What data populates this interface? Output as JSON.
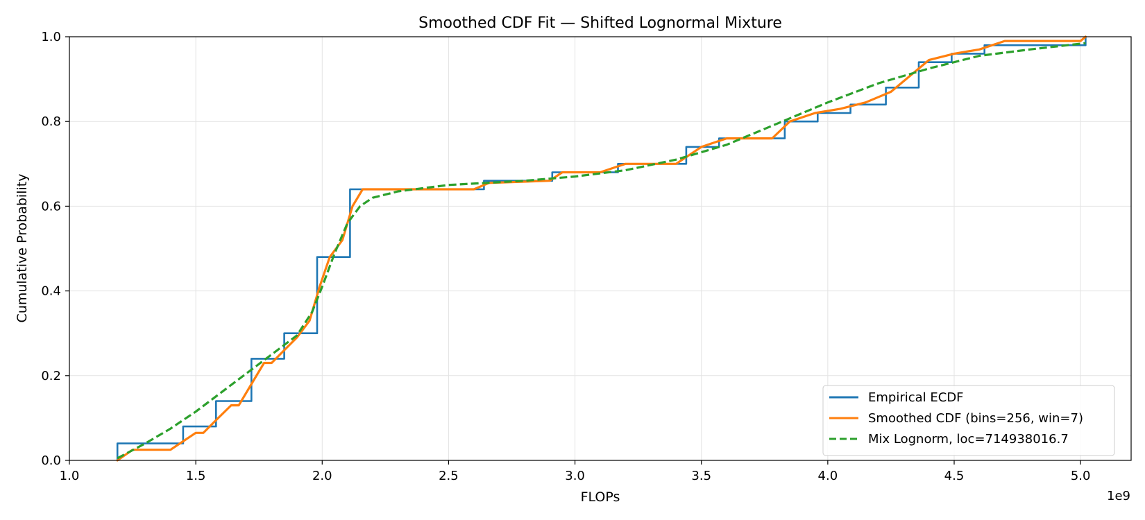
{
  "chart_data": {
    "type": "line",
    "title": "Smoothed CDF Fit — Shifted Lognormal Mixture",
    "xlabel": "FLOPs",
    "ylabel": "Cumulative Probability",
    "x_offset_label": "1e9",
    "xlim": [
      1.0,
      5.2
    ],
    "ylim": [
      0.0,
      1.0
    ],
    "x_ticks": [
      1.0,
      1.5,
      2.0,
      2.5,
      3.0,
      3.5,
      4.0,
      4.5,
      5.0
    ],
    "x_tick_labels": [
      "1.0",
      "1.5",
      "2.0",
      "2.5",
      "3.0",
      "3.5",
      "4.0",
      "4.5",
      "5.0"
    ],
    "y_ticks": [
      0.0,
      0.2,
      0.4,
      0.6,
      0.8,
      1.0
    ],
    "y_tick_labels": [
      "0.0",
      "0.2",
      "0.4",
      "0.6",
      "0.8",
      "1.0"
    ],
    "grid": true,
    "legend_position": "lower-right",
    "series": [
      {
        "name": "Empirical ECDF",
        "style": "step",
        "color": "#1f77b4",
        "dash": "solid",
        "x": [
          1.19,
          1.19,
          1.45,
          1.45,
          1.58,
          1.58,
          1.72,
          1.72,
          1.85,
          1.85,
          1.98,
          1.98,
          2.11,
          2.11,
          2.64,
          2.64,
          2.91,
          2.91,
          3.17,
          3.17,
          3.44,
          3.44,
          3.57,
          3.57,
          3.83,
          3.83,
          3.96,
          3.96,
          4.09,
          4.09,
          4.23,
          4.23,
          4.36,
          4.36,
          4.49,
          4.49,
          4.62,
          4.62,
          5.02,
          5.02
        ],
        "y": [
          0.0,
          0.04,
          0.04,
          0.08,
          0.08,
          0.14,
          0.14,
          0.24,
          0.24,
          0.3,
          0.3,
          0.48,
          0.48,
          0.64,
          0.64,
          0.66,
          0.66,
          0.68,
          0.68,
          0.7,
          0.7,
          0.74,
          0.74,
          0.76,
          0.76,
          0.8,
          0.8,
          0.82,
          0.82,
          0.84,
          0.84,
          0.88,
          0.88,
          0.94,
          0.94,
          0.96,
          0.96,
          0.98,
          0.98,
          1.0
        ]
      },
      {
        "name": "Smoothed CDF (bins=256, win=7)",
        "style": "line",
        "color": "#ff7f0e",
        "dash": "solid",
        "x": [
          1.19,
          1.25,
          1.3,
          1.4,
          1.45,
          1.5,
          1.53,
          1.58,
          1.64,
          1.67,
          1.72,
          1.77,
          1.8,
          1.85,
          1.9,
          1.95,
          1.99,
          2.03,
          2.08,
          2.12,
          2.16,
          2.35,
          2.6,
          2.66,
          2.9,
          2.95,
          3.1,
          3.2,
          3.4,
          3.5,
          3.6,
          3.78,
          3.85,
          3.95,
          4.05,
          4.15,
          4.25,
          4.4,
          4.5,
          4.6,
          4.7,
          5.0,
          5.02
        ],
        "y": [
          0.0,
          0.025,
          0.025,
          0.025,
          0.045,
          0.065,
          0.065,
          0.095,
          0.13,
          0.13,
          0.18,
          0.23,
          0.23,
          0.26,
          0.29,
          0.33,
          0.41,
          0.48,
          0.52,
          0.6,
          0.64,
          0.64,
          0.64,
          0.655,
          0.66,
          0.68,
          0.68,
          0.7,
          0.7,
          0.74,
          0.76,
          0.76,
          0.8,
          0.82,
          0.83,
          0.845,
          0.87,
          0.945,
          0.96,
          0.97,
          0.99,
          0.99,
          1.0
        ]
      },
      {
        "name": "Mix Lognorm, loc=714938016.7",
        "style": "line",
        "color": "#2ca02c",
        "dash": "dashed",
        "x": [
          1.19,
          1.3,
          1.4,
          1.5,
          1.6,
          1.7,
          1.8,
          1.9,
          1.96,
          2.0,
          2.05,
          2.1,
          2.15,
          2.2,
          2.3,
          2.5,
          2.8,
          3.0,
          3.2,
          3.4,
          3.6,
          3.8,
          4.0,
          4.2,
          4.4,
          4.6,
          4.8,
          5.02
        ],
        "y": [
          0.005,
          0.04,
          0.075,
          0.115,
          0.16,
          0.205,
          0.25,
          0.295,
          0.35,
          0.41,
          0.49,
          0.56,
          0.6,
          0.62,
          0.635,
          0.65,
          0.66,
          0.67,
          0.685,
          0.71,
          0.745,
          0.795,
          0.845,
          0.89,
          0.925,
          0.955,
          0.97,
          0.985
        ]
      }
    ]
  }
}
